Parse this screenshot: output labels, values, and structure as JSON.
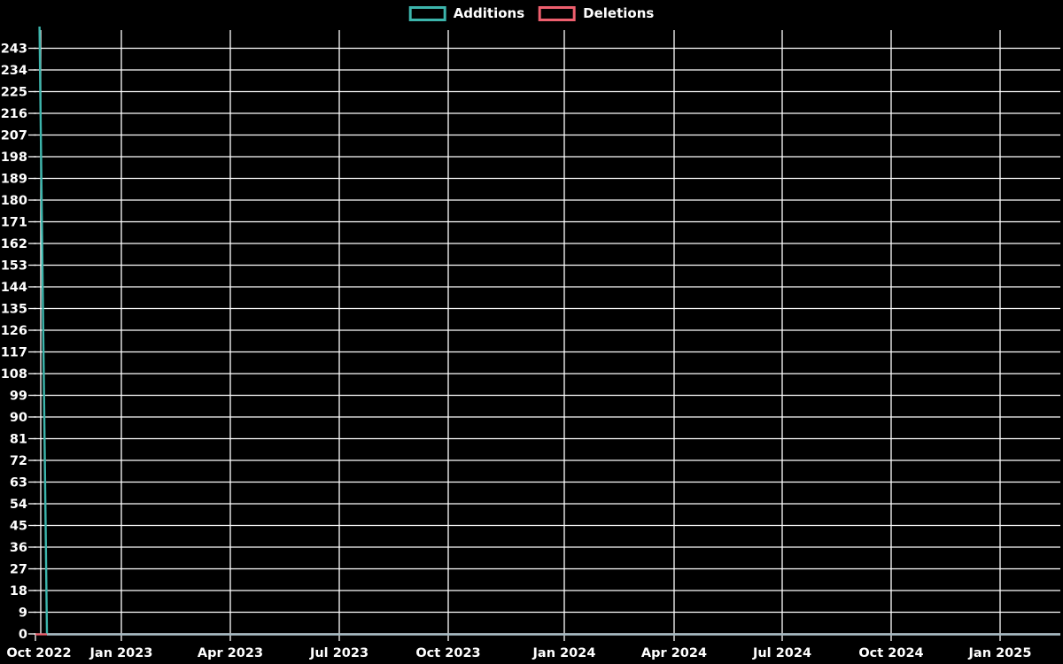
{
  "legend": {
    "items": [
      {
        "label": "Additions",
        "color": "#3cb5ac"
      },
      {
        "label": "Deletions",
        "color": "#ee5f6e"
      }
    ]
  },
  "chart_data": {
    "type": "line",
    "title": "",
    "xlabel": "",
    "ylabel": "",
    "legend_position": "top-center",
    "grid": true,
    "background_color": "#000000",
    "grid_color": "#ffffff",
    "text_color": "#ffffff",
    "zero_overlap_line_color": "#a4bec6",
    "x_axis": {
      "tick_labels": [
        "Oct 2022",
        "Jan 2023",
        "Apr 2023",
        "Jul 2023",
        "Oct 2023",
        "Jan 2024",
        "Apr 2024",
        "Jul 2024",
        "Oct 2024",
        "Jan 2025"
      ]
    },
    "y_axis": {
      "min": 0,
      "max": 252,
      "tick_step": 9,
      "tick_labels": [
        "0",
        "9",
        "18",
        "27",
        "36",
        "45",
        "54",
        "63",
        "72",
        "81",
        "90",
        "99",
        "108",
        "117",
        "126",
        "135",
        "144",
        "153",
        "162",
        "171",
        "180",
        "189",
        "198",
        "207",
        "216",
        "225",
        "234",
        "243"
      ]
    },
    "series": [
      {
        "name": "Additions",
        "color": "#3cb5ac",
        "points": [
          {
            "x": "Oct 2022 (first week)",
            "y": 252
          },
          {
            "x": "Oct 2022 (second week)",
            "y": 0
          },
          {
            "x": "flat at zero through Jan 2025",
            "y": 0
          }
        ]
      },
      {
        "name": "Deletions",
        "color": "#ee5f6e",
        "points": [
          {
            "x": "Oct 2022 (first week)",
            "y": 0
          },
          {
            "x": "flat at zero through Jan 2025",
            "y": 0
          }
        ]
      }
    ]
  }
}
